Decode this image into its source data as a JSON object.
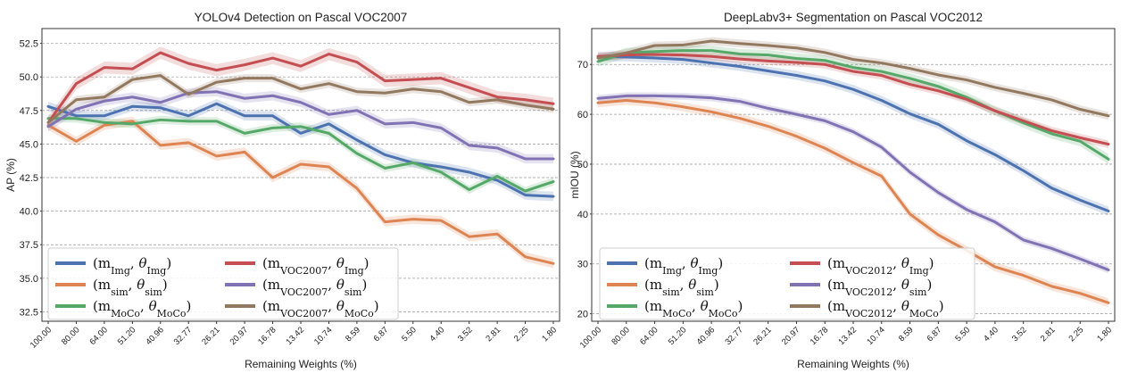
{
  "chart_data": [
    {
      "type": "line",
      "title": "YOLOv4 Detection on Pascal VOC2007",
      "xlabel": "Remaining Weights (%)",
      "ylabel": "AP (%)",
      "categories": [
        "100.00",
        "80.00",
        "64.00",
        "51.20",
        "40.96",
        "32.77",
        "26.21",
        "20.97",
        "16.78",
        "13.42",
        "10.74",
        "8.59",
        "6.87",
        "5.50",
        "4.40",
        "3.52",
        "2.81",
        "2.25",
        "1.80"
      ],
      "yticks": [
        "32.5",
        "35.0",
        "37.5",
        "40.0",
        "42.5",
        "45.0",
        "47.5",
        "50.0",
        "52.5"
      ],
      "ylim": [
        31.8,
        53.6
      ],
      "grid": true,
      "legend_position": "lower-left",
      "series": [
        {
          "name": "(m_Img, θ_Img)",
          "color": "#4c72b0",
          "band": 0.35,
          "values": [
            47.8,
            47.1,
            47.1,
            47.8,
            47.7,
            47.1,
            48.0,
            47.1,
            47.1,
            45.8,
            46.5,
            45.3,
            44.2,
            43.6,
            43.3,
            42.9,
            42.3,
            41.2,
            41.1
          ]
        },
        {
          "name": "(m_sim, θ_sim)",
          "color": "#dd8452",
          "band": 0.35,
          "values": [
            46.4,
            45.2,
            46.4,
            46.7,
            44.9,
            45.1,
            44.1,
            44.4,
            42.5,
            43.5,
            43.3,
            41.7,
            39.2,
            39.4,
            39.3,
            38.1,
            38.3,
            36.6,
            36.1
          ]
        },
        {
          "name": "(m_MoCo, θ_MoCo)",
          "color": "#55a868",
          "band": 0.3,
          "values": [
            46.9,
            46.9,
            46.6,
            46.5,
            46.8,
            46.7,
            46.7,
            45.8,
            46.2,
            46.3,
            45.8,
            44.3,
            43.2,
            43.6,
            42.9,
            41.6,
            42.6,
            41.5,
            42.2
          ]
        },
        {
          "name": "(m_VOC2007, θ_Img)",
          "color": "#c44e52",
          "band": 0.45,
          "values": [
            46.6,
            49.5,
            50.7,
            50.6,
            51.8,
            51.0,
            50.5,
            50.9,
            51.4,
            50.8,
            51.7,
            51.1,
            49.7,
            49.8,
            49.9,
            49.2,
            48.5,
            48.3,
            48.0
          ]
        },
        {
          "name": "(m_VOC2007, θ_sim)",
          "color": "#8172b3",
          "band": 0.35,
          "values": [
            46.3,
            47.6,
            48.2,
            48.5,
            48.1,
            48.8,
            48.9,
            48.4,
            48.6,
            48.1,
            47.2,
            47.5,
            46.5,
            46.6,
            46.2,
            44.9,
            44.7,
            43.9,
            43.9
          ]
        },
        {
          "name": "(m_VOC2007, θ_MoCo)",
          "color": "#937860",
          "band": 0.3,
          "values": [
            46.6,
            48.3,
            48.5,
            49.8,
            50.1,
            48.7,
            49.6,
            49.9,
            49.9,
            49.1,
            49.5,
            48.9,
            48.8,
            49.1,
            48.9,
            48.1,
            48.3,
            47.9,
            47.6
          ]
        }
      ]
    },
    {
      "type": "line",
      "title": "DeepLabv3+ Segmentation on Pascal VOC2012",
      "xlabel": "Remaining Weights (%)",
      "ylabel": "mIOU (%)",
      "categories": [
        "100.00",
        "80.00",
        "64.00",
        "51.20",
        "40.96",
        "32.77",
        "26.21",
        "20.97",
        "16.78",
        "13.42",
        "10.74",
        "8.59",
        "6.87",
        "5.50",
        "4.40",
        "3.52",
        "2.81",
        "2.25",
        "1.80"
      ],
      "yticks": [
        "20",
        "30",
        "40",
        "50",
        "60",
        "70"
      ],
      "ylim": [
        18.5,
        77.2
      ],
      "grid": true,
      "legend_position": "lower-left",
      "series": [
        {
          "name": "(m_Img, θ_Img)",
          "color": "#4c72b0",
          "band": 0.9,
          "values": [
            71.6,
            71.5,
            71.3,
            71.0,
            70.3,
            69.6,
            68.7,
            67.8,
            66.7,
            65.0,
            62.8,
            60.1,
            58.0,
            54.7,
            51.9,
            48.7,
            45.2,
            42.8,
            40.6
          ]
        },
        {
          "name": "(m_sim, θ_sim)",
          "color": "#dd8452",
          "band": 0.9,
          "values": [
            62.3,
            62.8,
            62.3,
            61.5,
            60.5,
            59.2,
            57.6,
            55.6,
            53.2,
            50.3,
            47.6,
            40.0,
            35.8,
            32.7,
            29.4,
            27.7,
            25.5,
            24.1,
            22.2
          ]
        },
        {
          "name": "(m_MoCo, θ_MoCo)",
          "color": "#55a868",
          "band": 1.0,
          "values": [
            70.6,
            72.3,
            72.6,
            72.8,
            72.8,
            72.1,
            71.9,
            71.2,
            70.8,
            69.4,
            68.6,
            67.2,
            65.6,
            63.4,
            60.7,
            58.3,
            56.1,
            54.6,
            51.0
          ]
        },
        {
          "name": "(m_VOC2012, θ_Img)",
          "color": "#c44e52",
          "band": 0.8,
          "values": [
            71.6,
            71.9,
            72.0,
            71.9,
            71.6,
            71.1,
            70.7,
            70.4,
            70.0,
            68.6,
            67.8,
            66.0,
            64.7,
            63.0,
            60.7,
            58.7,
            56.7,
            55.3,
            54.0
          ]
        },
        {
          "name": "(m_VOC2012, θ_sim)",
          "color": "#8172b3",
          "band": 0.7,
          "values": [
            63.2,
            63.7,
            63.7,
            63.6,
            63.3,
            62.6,
            61.2,
            60.0,
            58.7,
            56.5,
            53.4,
            48.4,
            44.3,
            40.9,
            38.4,
            34.8,
            33.1,
            31.0,
            28.8
          ]
        },
        {
          "name": "(m_VOC2012, θ_MoCo)",
          "color": "#937860",
          "band": 0.8,
          "values": [
            71.3,
            72.3,
            73.8,
            73.9,
            74.7,
            74.2,
            73.8,
            73.3,
            72.4,
            71.0,
            70.3,
            69.2,
            67.9,
            66.9,
            65.4,
            64.2,
            62.9,
            61.0,
            59.7
          ]
        }
      ]
    }
  ]
}
